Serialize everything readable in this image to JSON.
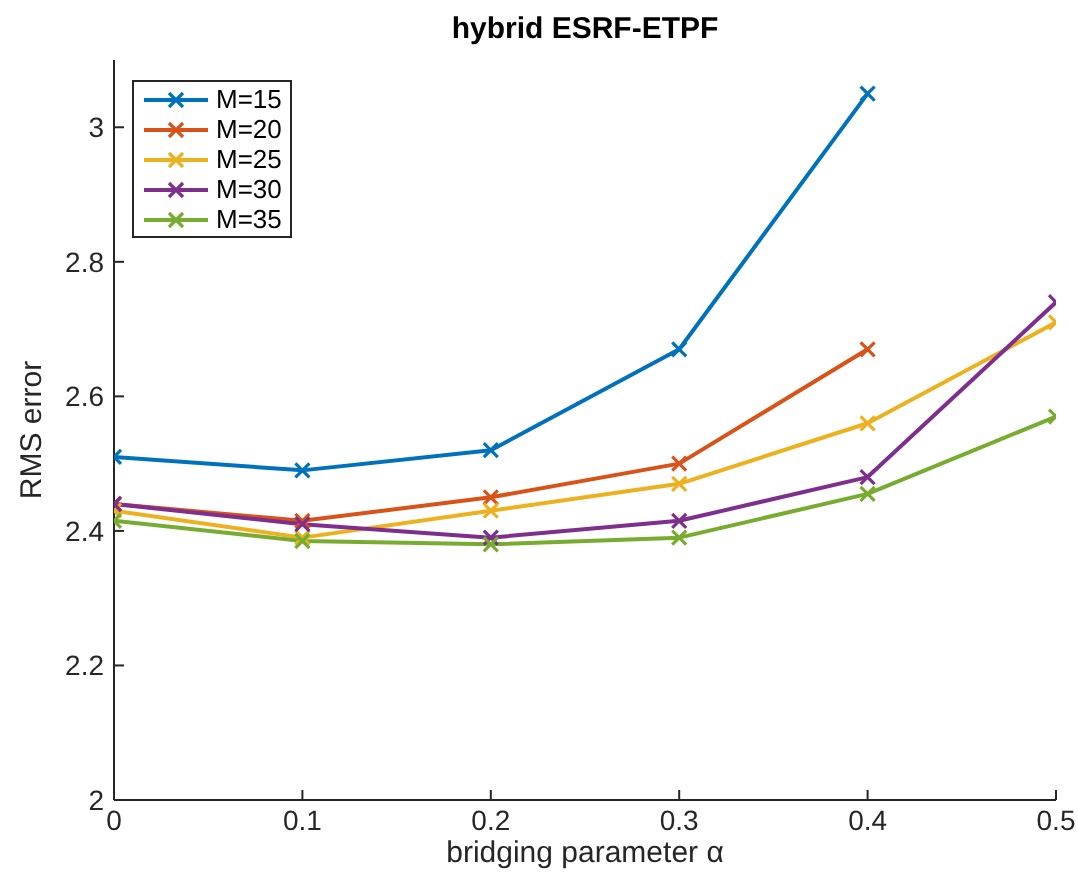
{
  "chart_data": {
    "type": "line",
    "title": "hybrid ESRF-ETPF",
    "xlabel": "bridging parameter α",
    "ylabel": "RMS error",
    "x": [
      0,
      0.1,
      0.2,
      0.3,
      0.4,
      0.5
    ],
    "series": [
      {
        "name": "M=15",
        "color": "#0072bd",
        "values": [
          2.51,
          2.49,
          2.52,
          2.67,
          3.05,
          null
        ]
      },
      {
        "name": "M=20",
        "color": "#d95319",
        "values": [
          2.44,
          2.415,
          2.45,
          2.5,
          2.67,
          null
        ]
      },
      {
        "name": "M=25",
        "color": "#edb120",
        "values": [
          2.43,
          2.39,
          2.43,
          2.47,
          2.56,
          2.71
        ]
      },
      {
        "name": "M=30",
        "color": "#7e2f8e",
        "values": [
          2.44,
          2.41,
          2.39,
          2.415,
          2.48,
          2.74
        ]
      },
      {
        "name": "M=35",
        "color": "#77ac30",
        "values": [
          2.415,
          2.385,
          2.38,
          2.39,
          2.455,
          2.57
        ]
      }
    ],
    "xlim": [
      0,
      0.5
    ],
    "xticks": [
      0,
      0.1,
      0.2,
      0.3,
      0.4,
      0.5
    ],
    "ylim": [
      2,
      3.1
    ],
    "yticks": [
      2,
      2.2,
      2.4,
      2.6,
      2.8,
      3
    ],
    "grid": false,
    "legend": "top left",
    "marker": "cross",
    "line_style": "solid"
  }
}
